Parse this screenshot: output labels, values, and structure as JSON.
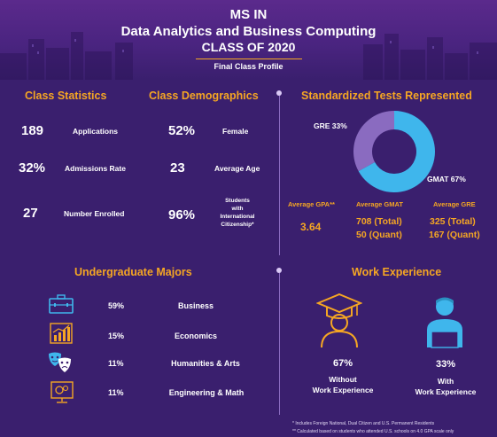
{
  "header": {
    "line1": "MS IN",
    "line2": "Data Analytics and Business Computing",
    "line3": "CLASS OF 2020",
    "subtitle": "Final Class Profile"
  },
  "class_statistics": {
    "title": "Class Statistics",
    "items": [
      {
        "value": "189",
        "label": "Applications"
      },
      {
        "value": "32%",
        "label": "Admissions Rate"
      },
      {
        "value": "27",
        "label": "Number Enrolled"
      }
    ]
  },
  "class_demographics": {
    "title": "Class Demographics",
    "items": [
      {
        "value": "52%",
        "label": "Female"
      },
      {
        "value": "23",
        "label": "Average Age"
      },
      {
        "value": "96%",
        "label_lines": [
          "Students",
          "with",
          "International",
          "Citizenship*"
        ]
      }
    ]
  },
  "standardized_tests": {
    "title": "Standardized Tests Represented",
    "gre_label": "GRE 33%",
    "gmat_label": "GMAT 67%",
    "averages": [
      {
        "heading": "Average GPA**",
        "lines": [
          "3.64"
        ]
      },
      {
        "heading": "Average GMAT",
        "lines": [
          "708 (Total)",
          "50 (Quant)"
        ]
      },
      {
        "heading": "Average GRE",
        "lines": [
          "325 (Total)",
          "167 (Quant)"
        ]
      }
    ]
  },
  "undergraduate_majors": {
    "title": "Undergraduate Majors",
    "items": [
      {
        "pct": "59%",
        "name": "Business",
        "icon": "briefcase-icon"
      },
      {
        "pct": "15%",
        "name": "Economics",
        "icon": "bar-chart-icon"
      },
      {
        "pct": "11%",
        "name": "Humanities & Arts",
        "icon": "theater-masks-icon"
      },
      {
        "pct": "11%",
        "name": "Engineering & Math",
        "icon": "monitor-gear-icon"
      }
    ]
  },
  "work_experience": {
    "title": "Work Experience",
    "without": {
      "pct": "67%",
      "line1": "Without",
      "line2": "Work Experience"
    },
    "with": {
      "pct": "33%",
      "line1": "With",
      "line2": "Work Experience"
    }
  },
  "footnotes": [
    "* Includes Foreign National, Dual Citizen and U.S. Permanent Residents",
    "** Calculated based on students who attended U.S. schools on 4.0 GPA scale only"
  ],
  "colors": {
    "background": "#3a1f6e",
    "accent": "#f5a623",
    "icon_blue": "#3fb6ec",
    "donut_gmat": "#3fb6ec",
    "donut_gre": "#8a6bc0"
  },
  "chart_data": {
    "type": "pie",
    "categories": [
      "GRE",
      "GMAT"
    ],
    "values": [
      33,
      67
    ],
    "title": "Standardized Tests Represented"
  }
}
